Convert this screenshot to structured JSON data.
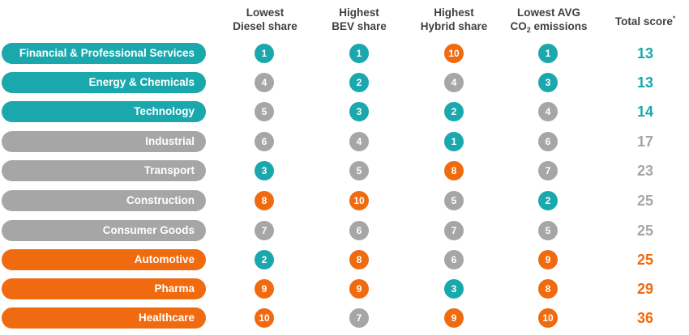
{
  "colors": {
    "teal": "#1aa8ad",
    "gray": "#a6a6a6",
    "orange": "#f06a10"
  },
  "headers": {
    "diesel": {
      "line1": "Lowest",
      "line2": "Diesel share"
    },
    "bev": {
      "line1": "Highest",
      "line2": "BEV share"
    },
    "hybrid": {
      "line1": "Highest",
      "line2": "Hybrid share"
    },
    "co2": {
      "line1": "Lowest AVG",
      "co": "CO",
      "sub": "2",
      "rest": " emissions"
    },
    "total": {
      "label": "Total score",
      "sup": "*"
    }
  },
  "chart_data": {
    "type": "table",
    "columns": [
      "Lowest Diesel share",
      "Highest BEV share",
      "Highest Hybrid share",
      "Lowest AVG CO2 emissions",
      "Total score*"
    ],
    "rows": [
      {
        "sector": "Financial & Professional Services",
        "color": "teal",
        "ranks": [
          1,
          1,
          10,
          1
        ],
        "rank_colors": [
          "teal",
          "teal",
          "orange",
          "teal"
        ],
        "total": 13
      },
      {
        "sector": "Energy & Chemicals",
        "color": "teal",
        "ranks": [
          4,
          2,
          4,
          3
        ],
        "rank_colors": [
          "gray",
          "teal",
          "gray",
          "teal"
        ],
        "total": 13
      },
      {
        "sector": "Technology",
        "color": "teal",
        "ranks": [
          5,
          3,
          2,
          4
        ],
        "rank_colors": [
          "gray",
          "teal",
          "teal",
          "gray"
        ],
        "total": 14
      },
      {
        "sector": "Industrial",
        "color": "gray",
        "ranks": [
          6,
          4,
          1,
          6
        ],
        "rank_colors": [
          "gray",
          "gray",
          "teal",
          "gray"
        ],
        "total": 17
      },
      {
        "sector": "Transport",
        "color": "gray",
        "ranks": [
          3,
          5,
          8,
          7
        ],
        "rank_colors": [
          "teal",
          "gray",
          "orange",
          "gray"
        ],
        "total": 23
      },
      {
        "sector": "Construction",
        "color": "gray",
        "ranks": [
          8,
          10,
          5,
          2
        ],
        "rank_colors": [
          "orange",
          "orange",
          "gray",
          "teal"
        ],
        "total": 25
      },
      {
        "sector": "Consumer Goods",
        "color": "gray",
        "ranks": [
          7,
          6,
          7,
          5
        ],
        "rank_colors": [
          "gray",
          "gray",
          "gray",
          "gray"
        ],
        "total": 25
      },
      {
        "sector": "Automotive",
        "color": "orange",
        "ranks": [
          2,
          8,
          6,
          9
        ],
        "rank_colors": [
          "teal",
          "orange",
          "gray",
          "orange"
        ],
        "total": 25
      },
      {
        "sector": "Pharma",
        "color": "orange",
        "ranks": [
          9,
          9,
          3,
          8
        ],
        "rank_colors": [
          "orange",
          "orange",
          "teal",
          "orange"
        ],
        "total": 29
      },
      {
        "sector": "Healthcare",
        "color": "orange",
        "ranks": [
          10,
          7,
          9,
          10
        ],
        "rank_colors": [
          "orange",
          "gray",
          "orange",
          "orange"
        ],
        "total": 36
      }
    ]
  }
}
